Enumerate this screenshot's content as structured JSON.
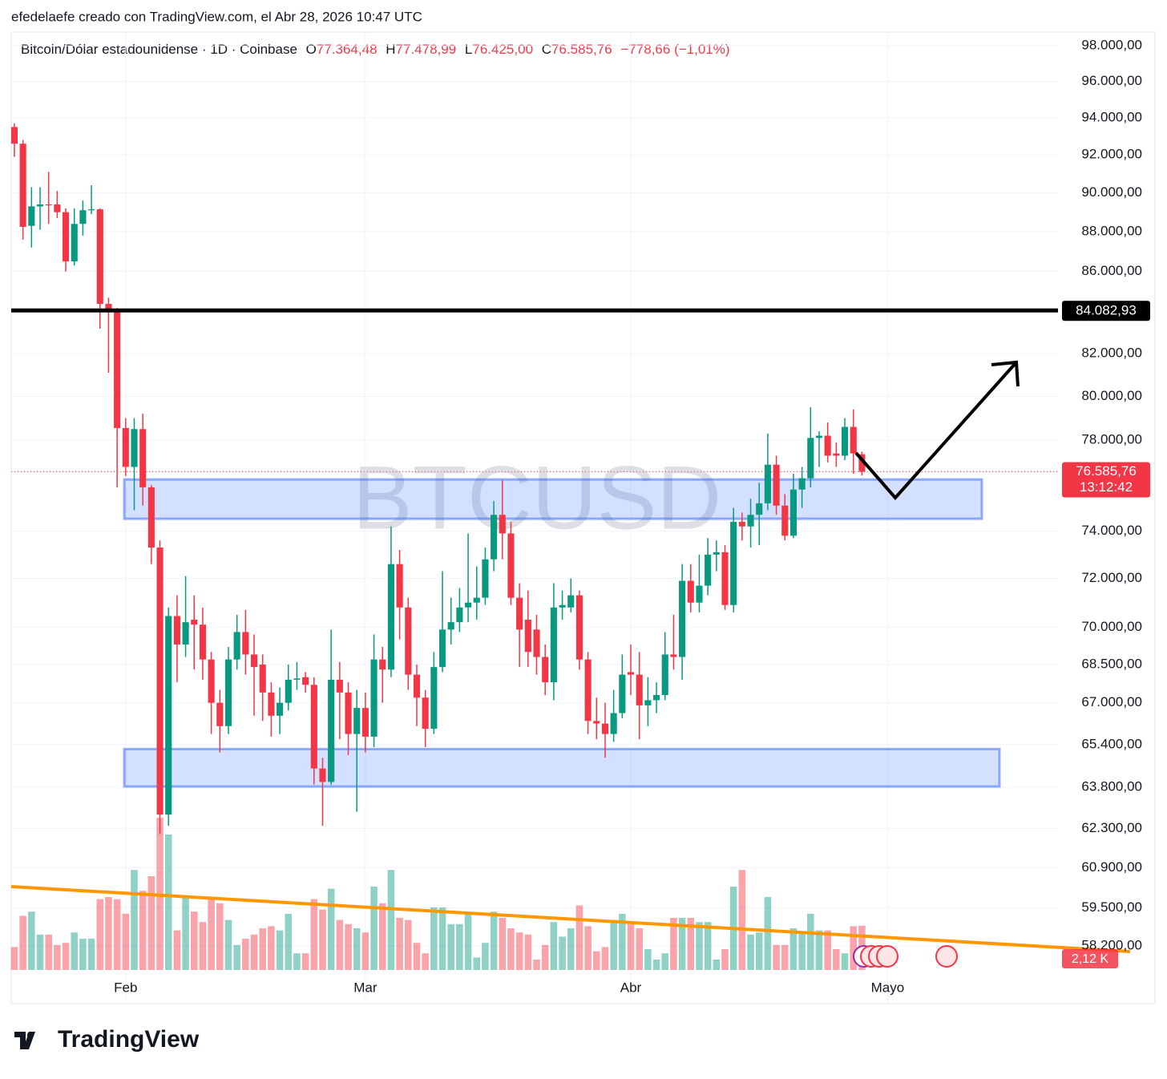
{
  "attribution": "efedelaefe creado con TradingView.com, el Abr 28, 2026 10:47 UTC",
  "header": {
    "symbol": "Bitcoin/Dólar estadounidense · 1D · Coinbase",
    "open_label": "O",
    "open": "77.364,48",
    "high_label": "H",
    "high": "77.478,99",
    "low_label": "L",
    "low": "76.425,00",
    "close_label": "C",
    "close": "76.585,76",
    "change": "−778,66 (−1,01%)"
  },
  "footer": {
    "brand": "TradingView"
  },
  "chart_data": {
    "type": "candlestick",
    "watermark": "BTCUSD",
    "up_color": "#089981",
    "down_color": "#f23645",
    "log_scale": true,
    "grid": true,
    "open": [
      93500,
      92600,
      88300,
      89300,
      89400,
      89400,
      89000,
      86500,
      88400,
      89100,
      89150,
      84400,
      84100,
      78550,
      76800,
      78500,
      75900,
      73300,
      62800,
      70450,
      69300,
      70300,
      70100,
      68700,
      67000,
      66100,
      68700,
      69800,
      68900,
      68500,
      67400,
      66500,
      67000,
      67900,
      68000,
      67700,
      64500,
      64000,
      67900,
      67400,
      65800,
      66800,
      65700,
      68700,
      68300,
      72600,
      70800,
      68100,
      67200,
      66000,
      68400,
      69900,
      70200,
      70800,
      71000,
      71200,
      72800,
      74700,
      73900,
      71200,
      70300,
      69900,
      68800,
      67800,
      70800,
      70800,
      71300,
      68700,
      66300,
      66200,
      65800,
      66600,
      68200,
      68100,
      66900,
      67100,
      67300,
      68900,
      68800,
      71900,
      71000,
      71700,
      73000,
      73100,
      70900,
      74400,
      74200,
      74700,
      75200,
      76900,
      75100,
      73800,
      75800,
      76300,
      78100,
      78200,
      77400,
      77300,
      78600,
      77364.48
    ],
    "high": [
      93700,
      92800,
      90300,
      90300,
      91100,
      90100,
      89200,
      89200,
      89600,
      90400,
      89200,
      84700,
      84200,
      79000,
      79000,
      79200,
      76000,
      73600,
      70800,
      71300,
      72100,
      71300,
      70800,
      69000,
      67500,
      69200,
      70500,
      70700,
      69700,
      68900,
      67800,
      67600,
      68500,
      68600,
      68200,
      68000,
      64900,
      69900,
      68600,
      67800,
      67500,
      67400,
      69700,
      69200,
      74200,
      73200,
      71200,
      68500,
      67500,
      69000,
      72300,
      71200,
      71600,
      73900,
      72500,
      73300,
      75300,
      76200,
      74400,
      71800,
      71500,
      70500,
      69300,
      71800,
      71500,
      72000,
      71500,
      69000,
      67200,
      67000,
      67500,
      68900,
      69300,
      69000,
      68000,
      67800,
      69800,
      70500,
      72600,
      72600,
      73000,
      73700,
      73600,
      73400,
      75000,
      74800,
      75400,
      76100,
      78300,
      77300,
      75600,
      76500,
      76800,
      79500,
      78400,
      78800,
      77900,
      79000,
      79400,
      77478.99
    ],
    "low": [
      91900,
      87600,
      87200,
      88100,
      88400,
      88700,
      86000,
      86300,
      87800,
      88900,
      83200,
      81100,
      75900,
      76400,
      74900,
      75100,
      72600,
      62100,
      62400,
      67800,
      68800,
      68300,
      67900,
      65800,
      65100,
      65800,
      68300,
      68100,
      66500,
      66300,
      65700,
      65800,
      66700,
      67500,
      67400,
      63900,
      62400,
      63900,
      65600,
      65000,
      62900,
      65100,
      65300,
      67000,
      68000,
      69500,
      67500,
      66100,
      65300,
      65800,
      68200,
      69300,
      69800,
      70200,
      70300,
      70900,
      72300,
      72800,
      70900,
      68400,
      68400,
      68100,
      67300,
      67100,
      70300,
      70600,
      68300,
      65800,
      65600,
      64900,
      65500,
      66400,
      67300,
      65600,
      66100,
      66600,
      67100,
      68300,
      67900,
      70600,
      70600,
      71300,
      72300,
      70700,
      70600,
      73600,
      73300,
      73400,
      74900,
      74700,
      73600,
      73700,
      75000,
      75900,
      76800,
      77000,
      76800,
      77100,
      76500,
      76425
    ],
    "close": [
      92600,
      88250,
      89300,
      89400,
      89350,
      89000,
      86500,
      88400,
      89100,
      89150,
      84400,
      84100,
      78550,
      76800,
      78500,
      75900,
      73300,
      62800,
      70450,
      69300,
      70200,
      70100,
      68700,
      67000,
      66100,
      68700,
      69800,
      68900,
      68400,
      67400,
      66500,
      67000,
      67900,
      67950,
      67700,
      64500,
      64000,
      67900,
      67400,
      65800,
      66800,
      65700,
      68700,
      68300,
      72600,
      70800,
      68100,
      67200,
      66000,
      68400,
      69900,
      70200,
      70800,
      71000,
      71200,
      72800,
      74700,
      73900,
      71200,
      69900,
      69000,
      68800,
      67800,
      70800,
      70900,
      71300,
      68700,
      66300,
      66200,
      65800,
      66600,
      68100,
      68100,
      66900,
      67100,
      67300,
      68900,
      68800,
      71900,
      71000,
      71700,
      73000,
      73100,
      70900,
      74400,
      74200,
      74700,
      75200,
      76900,
      75100,
      73800,
      75800,
      76300,
      78100,
      78200,
      77300,
      77300,
      78600,
      77400,
      76585.76
    ],
    "volume": {
      "values": [
        1.1,
        2.6,
        2.8,
        1.7,
        1.7,
        1.2,
        1.3,
        1.8,
        1.5,
        1.5,
        3.4,
        3.5,
        3.4,
        2.7,
        4.8,
        3.8,
        4.5,
        7.3,
        6.5,
        1.9,
        3.5,
        2.8,
        2.3,
        3.5,
        3.2,
        2.4,
        1.2,
        1.5,
        1.7,
        2.0,
        2.1,
        1.9,
        2.7,
        0.8,
        0.8,
        3.4,
        2.9,
        3.9,
        2.4,
        2.2,
        2.0,
        1.8,
        4.0,
        3.2,
        4.8,
        2.5,
        2.4,
        1.3,
        0.8,
        3.0,
        3.0,
        2.2,
        2.2,
        2.7,
        0.6,
        1.3,
        2.8,
        2.5,
        2.0,
        1.8,
        1.7,
        0.5,
        1.2,
        2.3,
        1.6,
        2.0,
        3.1,
        2.1,
        0.9,
        1.1,
        2.4,
        2.7,
        2.2,
        2.0,
        1.0,
        0.5,
        0.8,
        2.5,
        2.5,
        2.5,
        2.3,
        2.3,
        0.5,
        1.0,
        4.0,
        4.8,
        1.7,
        1.8,
        3.5,
        1.2,
        1.2,
        2.0,
        1.8,
        2.7,
        1.9,
        1.9,
        1.0,
        0.8,
        2.1,
        2.12
      ],
      "ylim": [
        0,
        20
      ],
      "last_label": "2,12 K"
    },
    "xlim": [
      -0.37,
      121.9
    ],
    "xticks": [
      {
        "value": 13,
        "label": "Feb"
      },
      {
        "value": 41,
        "label": "Mar"
      },
      {
        "value": 72,
        "label": "Abr"
      },
      {
        "value": 102,
        "label": "Mayo"
      }
    ],
    "ylim": [
      57400,
      98780
    ],
    "yticks": [
      {
        "value": 98000,
        "label": "98.000,00"
      },
      {
        "value": 96000,
        "label": "96.000,00"
      },
      {
        "value": 94000,
        "label": "94.000,00"
      },
      {
        "value": 92000,
        "label": "92.000,00"
      },
      {
        "value": 90000,
        "label": "90.000,00"
      },
      {
        "value": 88000,
        "label": "88.000,00"
      },
      {
        "value": 86000,
        "label": "86.000,00"
      },
      {
        "value": 82000,
        "label": "82.000,00"
      },
      {
        "value": 80000,
        "label": "80.000,00"
      },
      {
        "value": 78000,
        "label": "78.000,00"
      },
      {
        "value": 74000,
        "label": "74.000,00"
      },
      {
        "value": 72000,
        "label": "72.000,00"
      },
      {
        "value": 70000,
        "label": "70.000,00"
      },
      {
        "value": 68500,
        "label": "68.500,00"
      },
      {
        "value": 67000,
        "label": "67.000,00"
      },
      {
        "value": 65400,
        "label": "65.400,00"
      },
      {
        "value": 63800,
        "label": "63.800,00"
      },
      {
        "value": 62300,
        "label": "62.300,00"
      },
      {
        "value": 60900,
        "label": "60.900,00"
      },
      {
        "value": 59500,
        "label": "59.500,00"
      },
      {
        "value": 58200,
        "label": "58.200,00"
      }
    ],
    "horizontal_line": {
      "value": 84082.93,
      "label": "84.082,93",
      "color": "#000000"
    },
    "last_price": {
      "value": 76585.76,
      "label": "76.585,76",
      "countdown": "13:12:42",
      "color": "#f23645"
    },
    "zones": [
      {
        "low": 74530,
        "high": 76245
      },
      {
        "low": 63830,
        "high": 65230
      }
    ],
    "zone_color": "#2962ff"
  }
}
